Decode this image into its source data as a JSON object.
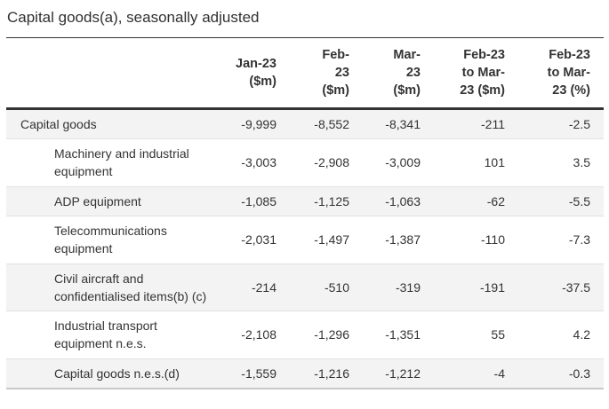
{
  "title": "Capital goods(a), seasonally adjusted",
  "colors": {
    "text": "#333333",
    "stripe_row_background": "#f3f3f3",
    "row_divider": "#e1e1e1",
    "title_rule": "#333333",
    "header_rule": "#333333",
    "table_bottom_rule": "#c9c9c9"
  },
  "table": {
    "header_display": [
      "Jan-23\n($m)",
      "Feb-\n23\n($m)",
      "Mar-\n23\n($m)",
      "Feb-23\nto Mar-\n23 ($m)",
      "Feb-23\nto Mar-\n23 (%)"
    ],
    "rows": [
      {
        "label": "Capital goods",
        "level": 0,
        "values": [
          "-9,999",
          "-8,552",
          "-8,341",
          "-211",
          "-2.5"
        ]
      },
      {
        "label": "Machinery and industrial equipment",
        "level": 1,
        "values": [
          "-3,003",
          "-2,908",
          "-3,009",
          "101",
          "3.5"
        ]
      },
      {
        "label": "ADP equipment",
        "level": 1,
        "values": [
          "-1,085",
          "-1,125",
          "-1,063",
          "-62",
          "-5.5"
        ]
      },
      {
        "label": "Telecommunications equipment",
        "level": 1,
        "values": [
          "-2,031",
          "-1,497",
          "-1,387",
          "-110",
          "-7.3"
        ]
      },
      {
        "label": "Civil aircraft and confidentialised items(b) (c)",
        "level": 1,
        "values": [
          "-214",
          "-510",
          "-319",
          "-191",
          "-37.5"
        ]
      },
      {
        "label": "Industrial transport equipment n.e.s.",
        "level": 1,
        "values": [
          "-2,108",
          "-1,296",
          "-1,351",
          "55",
          "4.2"
        ]
      },
      {
        "label": "Capital goods n.e.s.(d)",
        "level": 1,
        "values": [
          "-1,559",
          "-1,216",
          "-1,212",
          "-4",
          "-0.3"
        ]
      }
    ]
  },
  "chart_data": {
    "type": "table",
    "title": "Capital goods(a), seasonally adjusted",
    "columns": [
      "Jan-23 ($m)",
      "Feb-23 ($m)",
      "Mar-23 ($m)",
      "Feb-23 to Mar-23 ($m)",
      "Feb-23 to Mar-23 (%)"
    ],
    "row_labels": [
      "Capital goods",
      "Machinery and industrial equipment",
      "ADP equipment",
      "Telecommunications equipment",
      "Civil aircraft and confidentialised items(b) (c)",
      "Industrial transport equipment n.e.s.",
      "Capital goods n.e.s.(d)"
    ],
    "values": [
      [
        -9999,
        -8552,
        -8341,
        -211,
        -2.5
      ],
      [
        -3003,
        -2908,
        -3009,
        101,
        3.5
      ],
      [
        -1085,
        -1125,
        -1063,
        -62,
        -5.5
      ],
      [
        -2031,
        -1497,
        -1387,
        -110,
        -7.3
      ],
      [
        -214,
        -510,
        -319,
        -191,
        -37.5
      ],
      [
        -2108,
        -1296,
        -1351,
        55,
        4.2
      ],
      [
        -1559,
        -1216,
        -1212,
        -4,
        -0.3
      ]
    ]
  }
}
